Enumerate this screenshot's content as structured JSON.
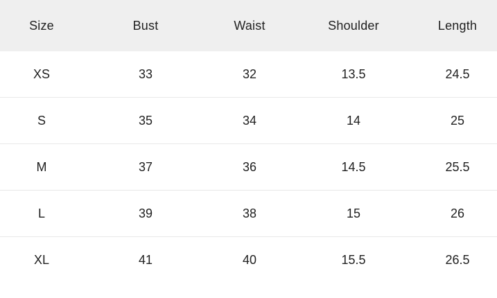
{
  "size_chart": {
    "columns": [
      "Size",
      "Bust",
      "Waist",
      "Shoulder",
      "Length"
    ],
    "rows": [
      [
        "XS",
        "33",
        "32",
        "13.5",
        "24.5"
      ],
      [
        "S",
        "35",
        "34",
        "14",
        "25"
      ],
      [
        "M",
        "37",
        "36",
        "14.5",
        "25.5"
      ],
      [
        "L",
        "39",
        "38",
        "15",
        "26"
      ],
      [
        "XL",
        "41",
        "40",
        "15.5",
        "26.5"
      ]
    ]
  },
  "colors": {
    "header_bg": "#efefef",
    "divider": "#e8e8e8",
    "text": "#212121",
    "row_bg": "#ffffff"
  }
}
